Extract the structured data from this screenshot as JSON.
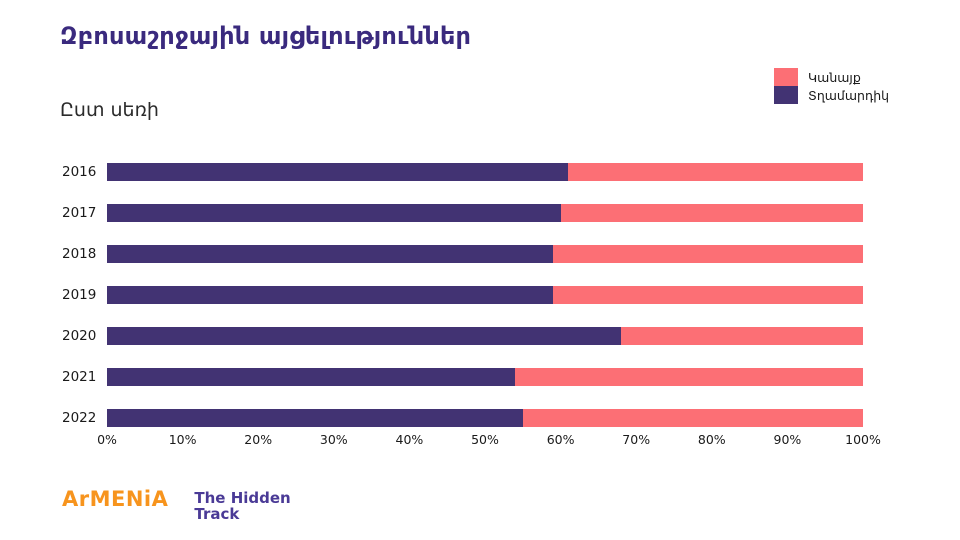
{
  "title": "Զբոսաշրջային այցելություններ",
  "subtitle": "Ըստ սեռի",
  "legend": {
    "items": [
      {
        "label": "Կանայք",
        "color": "#FC6F75"
      },
      {
        "label": "Տղամարդիկ",
        "color": "#423373"
      }
    ]
  },
  "colors": {
    "bar_purple": "#423373",
    "bar_pink": "#FC6F75",
    "title_purple": "#3A2A7E",
    "logo_orange": "#F7941D",
    "logo_purple": "#4A3A96"
  },
  "chart_data": {
    "type": "bar",
    "orientation": "horizontal",
    "stacked": true,
    "percent_stacked": true,
    "title": "Զբոսաշրջային այցելություններ",
    "subtitle": "Ըստ սեռի",
    "categories": [
      "2016",
      "2017",
      "2018",
      "2019",
      "2020",
      "2021",
      "2022"
    ],
    "series": [
      {
        "id": "men",
        "name": "Տղամարդիկ",
        "color": "#423373",
        "values": [
          61,
          60,
          59,
          59,
          68,
          54,
          55
        ]
      },
      {
        "id": "women",
        "name": "Կանայք",
        "color": "#FC6F75",
        "values": [
          39,
          40,
          41,
          41,
          32,
          46,
          45
        ]
      }
    ],
    "x_ticks": [
      "0%",
      "10%",
      "20%",
      "30%",
      "40%",
      "50%",
      "60%",
      "70%",
      "80%",
      "90%",
      "100%"
    ],
    "xlim": [
      0,
      100
    ],
    "grid": false,
    "legend_position": "top-right"
  },
  "footer": {
    "brand": "ArMENiA",
    "tagline_line1": "The Hidden",
    "tagline_line2": "Track"
  }
}
